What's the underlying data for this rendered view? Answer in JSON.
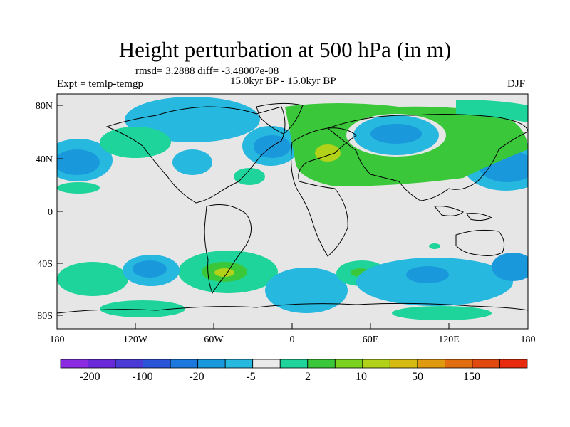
{
  "title": "Height perturbation at 500 hPa (in m)",
  "stats": "rmsd= 3.2888  diff= -3.48007e-08",
  "experiment": "Expt = temlp-temgp",
  "period": "15.0kyr BP - 15.0kyr BP",
  "season": "DJF",
  "lat_ticks": [
    "80N",
    "40N",
    "0",
    "40S",
    "80S"
  ],
  "lon_ticks": [
    "180",
    "120W",
    "60W",
    "0",
    "60E",
    "120E",
    "180"
  ],
  "colorbar": {
    "labels": [
      "-200",
      "-100",
      "-20",
      "-5",
      "2",
      "10",
      "50",
      "150"
    ],
    "colors": [
      "#8a2be2",
      "#6a29d8",
      "#4a3bd6",
      "#2a55d8",
      "#1c78dc",
      "#1a98dc",
      "#26b8de",
      "#eaeaea",
      "#1ed49a",
      "#3ac83a",
      "#7ad21e",
      "#b2d21a",
      "#d6ba12",
      "#e09a10",
      "#e06e10",
      "#e04a10",
      "#e82a0e"
    ]
  },
  "colors": {
    "background": "#e6e6e6",
    "neg_weak": "#26b8de",
    "neg_mid": "#1a98dc",
    "pos_weak": "#1ed49a",
    "pos_mid": "#3ac83a",
    "pos_strong": "#b2d21a"
  }
}
